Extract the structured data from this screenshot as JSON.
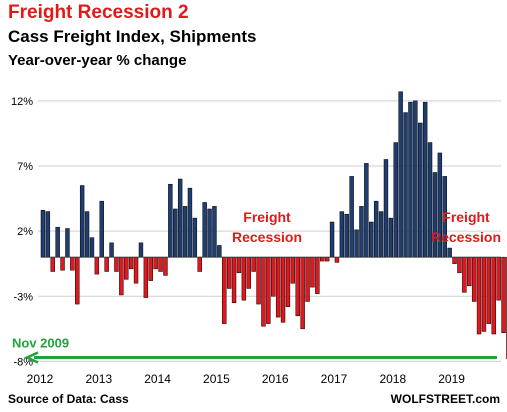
{
  "header": {
    "title": "Freight Recession 2",
    "subtitle": "Cass Freight Index, Shipments",
    "subtitle2": "Year-over-year % change"
  },
  "footer": {
    "source": "Source of Data: Cass",
    "brand": "WOLFSTREET.com"
  },
  "annotations": {
    "recession_label": "Freight Recession",
    "nov2009_label": "Nov 2009"
  },
  "colors": {
    "positive": "#1f3d6e",
    "negative": "#e2171d",
    "annotation_red": "#e01a1a",
    "arrow_green": "#22a33a",
    "grid": "#cfcfcf"
  },
  "chart_data": {
    "type": "bar",
    "x_tick_labels": [
      "2012",
      "2013",
      "2014",
      "2015",
      "2016",
      "2017",
      "2018",
      "2019"
    ],
    "y_tick_labels": [
      "12%",
      "7%",
      "2%",
      "-3%",
      "-8%"
    ],
    "y_ticks": [
      12,
      7,
      2,
      -3,
      -8
    ],
    "ylim": [
      -8.2,
      13
    ],
    "start": "2012-01",
    "frequency": "monthly",
    "reference_line": {
      "label": "Nov 2009",
      "value": -7.7
    },
    "values": [
      3.6,
      3.5,
      -1.1,
      2.3,
      -1.0,
      2.2,
      -1.0,
      -3.6,
      5.5,
      3.5,
      1.5,
      -1.3,
      4.3,
      -1.1,
      1.1,
      -1.1,
      -2.9,
      -1.7,
      -0.9,
      -2.0,
      1.1,
      -3.1,
      -1.8,
      -0.9,
      -1.1,
      -1.4,
      5.6,
      3.7,
      6.0,
      3.9,
      5.3,
      3.0,
      -1.1,
      4.2,
      3.7,
      3.9,
      0.9,
      -5.1,
      -2.4,
      -3.5,
      -1.2,
      -3.3,
      -2.4,
      -1.1,
      -3.6,
      -5.3,
      -5.1,
      -3.0,
      -4.6,
      -5.0,
      -3.8,
      -2.0,
      -4.5,
      -5.5,
      -3.4,
      -2.3,
      -2.8,
      -0.3,
      -0.3,
      2.7,
      -0.4,
      3.5,
      3.3,
      6.2,
      2.1,
      3.9,
      7.2,
      2.7,
      4.3,
      3.5,
      7.5,
      3.0,
      8.8,
      12.7,
      11.1,
      11.9,
      12.0,
      10.3,
      11.9,
      8.8,
      6.5,
      8.0,
      6.2,
      0.7,
      -0.5,
      -1.2,
      -2.7,
      -2.2,
      -3.4,
      -5.9,
      -5.7,
      -5.1,
      -5.9,
      -3.3,
      -5.8,
      -7.8
    ]
  }
}
